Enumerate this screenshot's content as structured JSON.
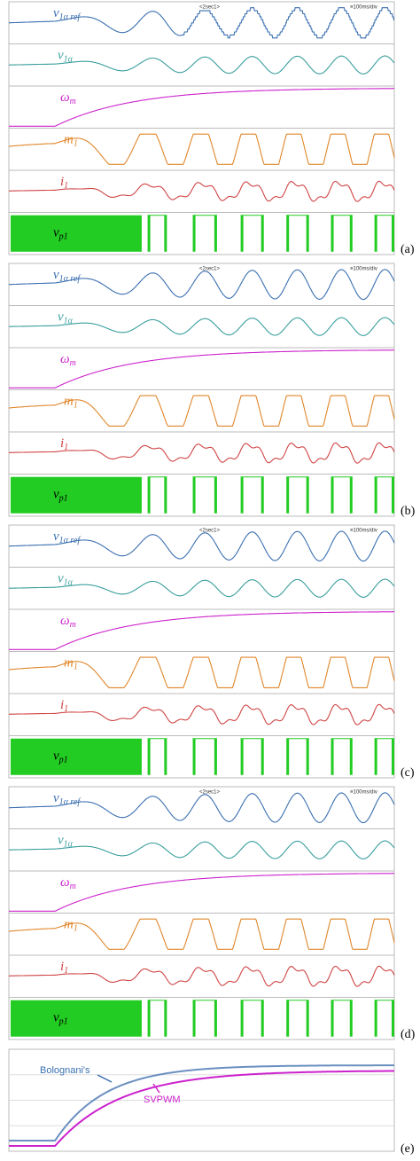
{
  "panels": [
    {
      "label": "(a)",
      "header": [
        "<2sec1>",
        "≡100ms/div"
      ],
      "traces": [
        {
          "base": "v",
          "sub": "1α ref"
        },
        {
          "base": "v",
          "sub": "1α"
        },
        {
          "base": "ω",
          "sub": "m"
        },
        {
          "base": "m",
          "sub": "1"
        },
        {
          "base": "i",
          "sub": "1"
        },
        {
          "base": "v",
          "sub": "p1"
        }
      ]
    },
    {
      "label": "(b)",
      "header": [
        "<2sec1>",
        "≡100ms/div"
      ],
      "traces": [
        {
          "base": "v",
          "sub": "1α ref"
        },
        {
          "base": "v",
          "sub": "1α"
        },
        {
          "base": "ω",
          "sub": "m"
        },
        {
          "base": "m",
          "sub": "1"
        },
        {
          "base": "i",
          "sub": "1"
        },
        {
          "base": "v",
          "sub": "p1"
        }
      ]
    },
    {
      "label": "(c)",
      "header": [
        "<2sec1>",
        "≡100ms/div"
      ],
      "traces": [
        {
          "base": "v",
          "sub": "1α ref"
        },
        {
          "base": "v",
          "sub": "1α"
        },
        {
          "base": "ω",
          "sub": "m"
        },
        {
          "base": "m",
          "sub": "1"
        },
        {
          "base": "i",
          "sub": "1"
        },
        {
          "base": "v",
          "sub": "p1"
        }
      ]
    },
    {
      "label": "(d)",
      "header": [
        "<2sec1>",
        "≡100ms/div"
      ],
      "traces": [
        {
          "base": "v",
          "sub": "1α ref"
        },
        {
          "base": "v",
          "sub": "1α"
        },
        {
          "base": "ω",
          "sub": "m"
        },
        {
          "base": "m",
          "sub": "1"
        },
        {
          "base": "i",
          "sub": "1"
        },
        {
          "base": "v",
          "sub": "p1"
        }
      ]
    }
  ],
  "panel_e": {
    "label": "(e)",
    "annotations": [
      "Bolognani's",
      "SVPWM"
    ]
  }
}
